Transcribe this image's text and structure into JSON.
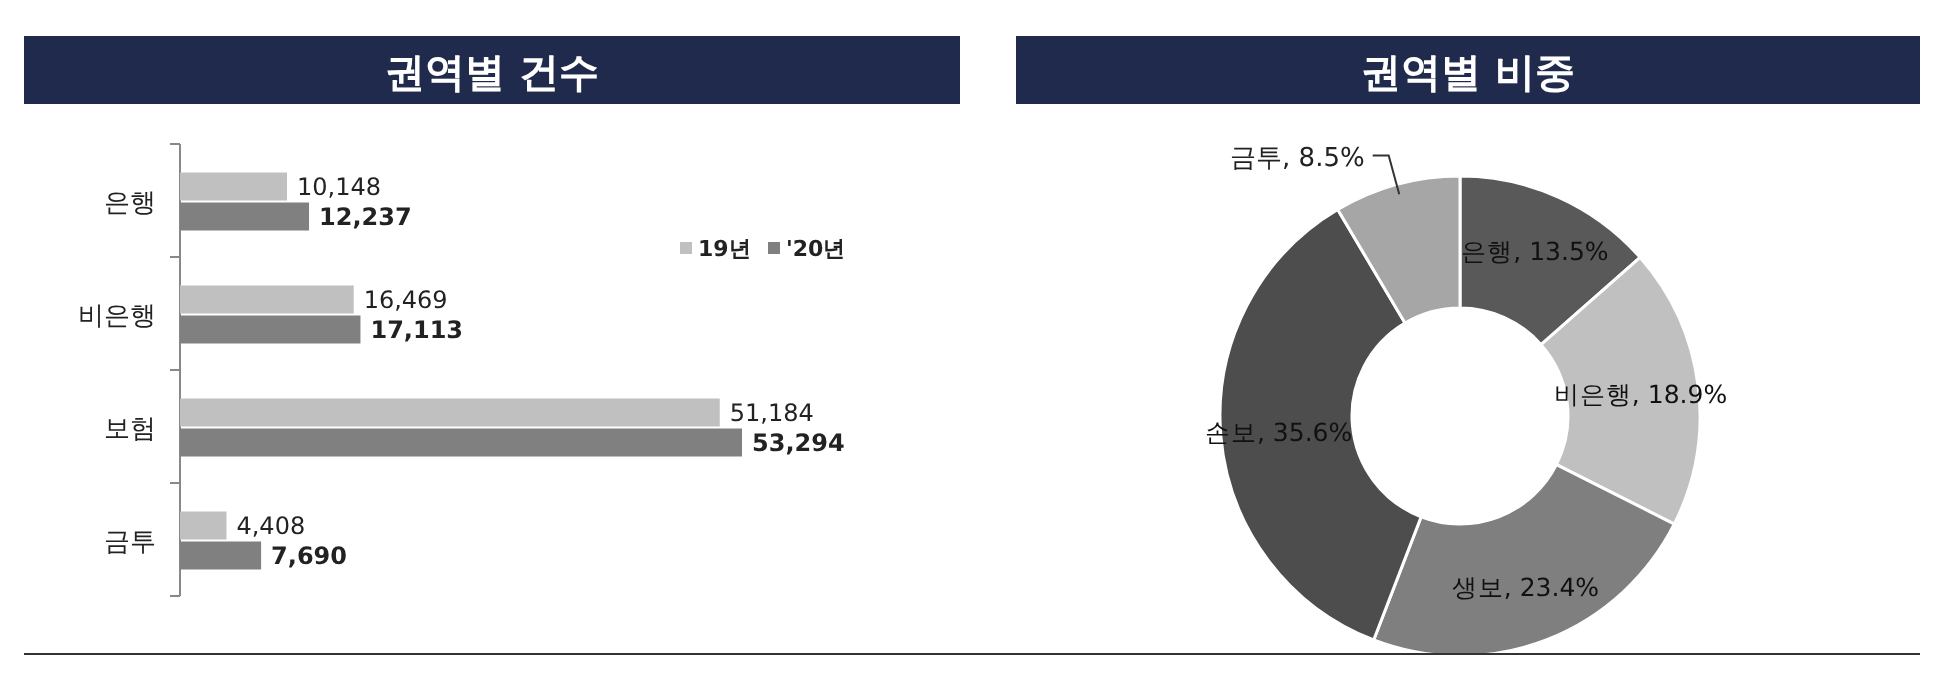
{
  "chart_data": [
    {
      "type": "bar",
      "orientation": "horizontal",
      "title": "권역별 건수",
      "categories": [
        "은행",
        "비은행",
        "보험",
        "금투"
      ],
      "legend": "right",
      "series": [
        {
          "name": "19년",
          "color": "#c0c0c0",
          "values": [
            10148,
            16469,
            51184,
            4408
          ],
          "value_labels": [
            "10,148",
            "16,469",
            "51,184",
            "4,408"
          ]
        },
        {
          "name": "'20년",
          "color": "#808080",
          "values": [
            12237,
            17113,
            53294,
            7690
          ],
          "value_labels": [
            "12,237",
            "17,113",
            "53,294",
            "7,690"
          ]
        }
      ]
    },
    {
      "type": "donut",
      "title": "권역별 비중",
      "categories": [
        "은행",
        "비은행",
        "생보",
        "손보",
        "금투"
      ],
      "values": [
        13.5,
        18.9,
        23.4,
        35.6,
        8.5
      ],
      "value_labels": [
        "13.5%",
        "18.9%",
        "23.4%",
        "35.6%",
        "8.5%"
      ],
      "colors": [
        "#595959",
        "#c0c0c0",
        "#7f7f7f",
        "#4d4d4d",
        "#a6a6a6"
      ]
    }
  ]
}
